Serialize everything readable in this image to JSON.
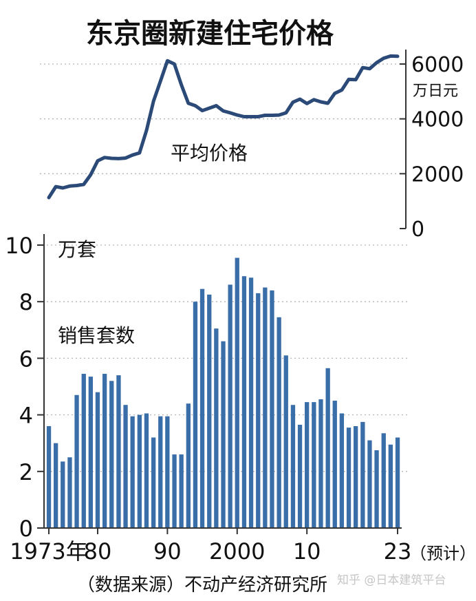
{
  "title": "东京圈新建住宅价格",
  "source": "（数据来源）不动产经济研究所",
  "watermark": "知乎 @日本建筑平台",
  "chart_data": [
    {
      "type": "line",
      "label": "平均价格",
      "y_unit": "万日元",
      "ylim": [
        0,
        6000
      ],
      "yticks": [
        0,
        2000,
        4000,
        6000
      ],
      "ytick_labels": [
        "0",
        "2000",
        "4000",
        "6000"
      ],
      "grid": true,
      "color": "#2b4a78",
      "series": [
        {
          "x": [
            1973,
            1974,
            1975,
            1976,
            1977,
            1978,
            1979,
            1980,
            1981,
            1982,
            1983,
            1984,
            1985,
            1986,
            1987,
            1988,
            1989,
            1990,
            1991,
            1992,
            1993,
            1994,
            1995,
            1996,
            1997,
            1998,
            1999,
            2000,
            2001,
            2002,
            2003,
            2004,
            2005,
            2006,
            2007,
            2008,
            2009,
            2010,
            2011,
            2012,
            2013,
            2014,
            2015,
            2016,
            2017,
            2018,
            2019,
            2020,
            2021,
            2022,
            2023
          ],
          "values": [
            1130,
            1530,
            1480,
            1550,
            1570,
            1610,
            1960,
            2470,
            2590,
            2560,
            2550,
            2570,
            2680,
            2760,
            3580,
            4640,
            5370,
            6120,
            6000,
            5240,
            4570,
            4480,
            4300,
            4390,
            4480,
            4290,
            4220,
            4140,
            4080,
            4080,
            4080,
            4130,
            4130,
            4140,
            4220,
            4610,
            4720,
            4560,
            4700,
            4620,
            4570,
            4930,
            5050,
            5440,
            5430,
            5870,
            5830,
            6050,
            6210,
            6290,
            6280
          ]
        }
      ]
    },
    {
      "type": "bar",
      "label": "销售套数",
      "y_unit": "万套",
      "ylim": [
        0,
        10
      ],
      "yticks": [
        0,
        2,
        4,
        6,
        8,
        10
      ],
      "ytick_labels": [
        "0",
        "2",
        "4",
        "6",
        "8",
        "10"
      ],
      "grid": true,
      "color": "#3a6ea8",
      "xtick_labels": [
        {
          "year": 1973,
          "text": "1973年"
        },
        {
          "year": 1980,
          "text": "80"
        },
        {
          "year": 1990,
          "text": "90"
        },
        {
          "year": 2000,
          "text": "2000"
        },
        {
          "year": 2010,
          "text": "10"
        },
        {
          "year": 2023,
          "text": "23"
        }
      ],
      "x_note": "（预计）",
      "x": [
        1973,
        1974,
        1975,
        1976,
        1977,
        1978,
        1979,
        1980,
        1981,
        1982,
        1983,
        1984,
        1985,
        1986,
        1987,
        1988,
        1989,
        1990,
        1991,
        1992,
        1993,
        1994,
        1995,
        1996,
        1997,
        1998,
        1999,
        2000,
        2001,
        2002,
        2003,
        2004,
        2005,
        2006,
        2007,
        2008,
        2009,
        2010,
        2011,
        2012,
        2013,
        2014,
        2015,
        2016,
        2017,
        2018,
        2019,
        2020,
        2021,
        2022,
        2023
      ],
      "values": [
        3.6,
        3.0,
        2.35,
        2.5,
        4.7,
        5.45,
        5.35,
        4.8,
        5.45,
        5.2,
        5.4,
        4.35,
        3.95,
        4.0,
        4.05,
        3.2,
        3.95,
        3.95,
        2.6,
        2.6,
        4.4,
        8.0,
        8.45,
        8.25,
        7.05,
        6.6,
        8.6,
        9.55,
        8.9,
        8.85,
        8.3,
        8.5,
        8.4,
        7.45,
        6.1,
        4.35,
        3.65,
        4.45,
        4.45,
        4.55,
        5.65,
        4.5,
        4.05,
        3.55,
        3.6,
        3.75,
        3.1,
        2.75,
        3.35,
        2.95,
        3.2
      ]
    }
  ]
}
